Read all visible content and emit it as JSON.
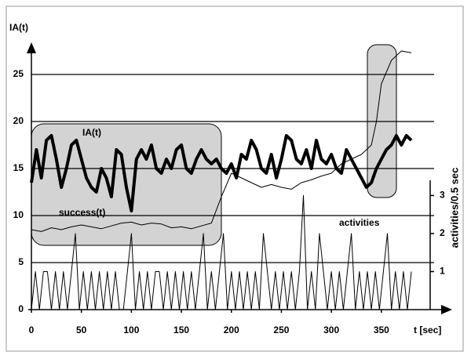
{
  "chart_data": {
    "type": "line",
    "y_label": "IA(t)",
    "x_label": "t [sec]",
    "y2_label": "activities/0.5 sec",
    "annotations": [
      "IA(t)",
      "success(t)",
      "activities"
    ],
    "xlim": [
      0,
      420
    ],
    "xticks": [
      0,
      50,
      100,
      150,
      200,
      250,
      300,
      350
    ],
    "ylim": [
      0,
      28
    ],
    "yticks": [
      0,
      5,
      10,
      15,
      20,
      25
    ],
    "y2lim": [
      0,
      3.4
    ],
    "y2ticks": [
      1,
      2,
      3
    ],
    "grid": true,
    "series": [
      {
        "name": "IA(t)",
        "color": "#000000",
        "x": [
          0,
          5,
          10,
          15,
          20,
          25,
          30,
          35,
          40,
          45,
          50,
          55,
          60,
          65,
          70,
          75,
          80,
          85,
          90,
          95,
          100,
          105,
          110,
          115,
          120,
          125,
          130,
          135,
          140,
          145,
          150,
          155,
          160,
          165,
          170,
          175,
          180,
          185,
          190,
          195,
          200,
          205,
          210,
          215,
          220,
          225,
          230,
          235,
          240,
          245,
          250,
          255,
          260,
          265,
          270,
          275,
          280,
          285,
          290,
          295,
          300,
          305,
          310,
          315,
          320,
          325,
          330,
          335,
          340,
          345,
          350,
          355,
          360,
          365,
          370,
          375,
          380
        ],
        "values": [
          13.5,
          17,
          14,
          18,
          18.5,
          16,
          13,
          15,
          17.5,
          18,
          16,
          14,
          13,
          12.5,
          15,
          14,
          12,
          17,
          16.5,
          13,
          10.5,
          16,
          17,
          16,
          17.5,
          15,
          14.5,
          16,
          15,
          17,
          17.5,
          15,
          14.5,
          16,
          17,
          16,
          15.5,
          16,
          15,
          14.5,
          15.5,
          14,
          16.5,
          16,
          18,
          17,
          15,
          14.5,
          16.5,
          14,
          16,
          18.5,
          18,
          16,
          15.5,
          17,
          15,
          18,
          16,
          15.5,
          16.5,
          15,
          14.5,
          17,
          16,
          15,
          14,
          13,
          13.5,
          15,
          16,
          17,
          17.5,
          18.5,
          17.5,
          18.5,
          18
        ]
      },
      {
        "name": "success(t)",
        "color": "#000000",
        "x": [
          0,
          10,
          20,
          30,
          40,
          50,
          60,
          70,
          80,
          90,
          100,
          110,
          120,
          130,
          140,
          150,
          160,
          170,
          180,
          190,
          200,
          210,
          220,
          230,
          240,
          250,
          260,
          270,
          280,
          290,
          300,
          310,
          320,
          330,
          340,
          345,
          350,
          360,
          370,
          380
        ],
        "values": [
          8.5,
          8.3,
          8.7,
          8.5,
          8.8,
          9,
          8.8,
          8.6,
          8.9,
          9.2,
          9.3,
          9,
          9.2,
          9.1,
          8.7,
          8.8,
          8.6,
          8.9,
          9.2,
          12,
          14.5,
          14,
          13.5,
          13,
          13.3,
          13,
          12.8,
          13.5,
          13.8,
          14.2,
          14.5,
          15.5,
          16,
          16.5,
          17.5,
          20,
          24,
          26.5,
          27.5,
          27.3
        ]
      },
      {
        "name": "activities",
        "color": "#000000",
        "axis": "y2",
        "x": [
          0,
          4,
          8,
          12,
          16,
          20,
          24,
          28,
          32,
          36,
          40,
          44,
          48,
          52,
          56,
          60,
          64,
          68,
          72,
          76,
          80,
          84,
          88,
          92,
          96,
          100,
          104,
          108,
          112,
          116,
          120,
          124,
          128,
          132,
          136,
          140,
          144,
          148,
          152,
          156,
          160,
          164,
          168,
          172,
          176,
          180,
          184,
          188,
          192,
          196,
          200,
          204,
          208,
          212,
          216,
          220,
          224,
          228,
          232,
          236,
          240,
          244,
          248,
          252,
          256,
          260,
          264,
          268,
          272,
          276,
          280,
          284,
          288,
          292,
          296,
          300,
          304,
          308,
          312,
          316,
          320,
          324,
          328,
          332,
          336,
          340,
          344,
          348,
          352,
          356,
          360,
          364,
          368,
          372,
          376,
          380
        ],
        "values": [
          0,
          1,
          0,
          1,
          1,
          0,
          1,
          0,
          1,
          0,
          1,
          2,
          0,
          1,
          0,
          1,
          0,
          1,
          0,
          1,
          0,
          1,
          0,
          0,
          1,
          2,
          0,
          1,
          0,
          1,
          0,
          1,
          1,
          0,
          1,
          0,
          1,
          0,
          1,
          0,
          1,
          0,
          1,
          2,
          0,
          1,
          0,
          1,
          2,
          0,
          1,
          0,
          1,
          0,
          1,
          0,
          1,
          0,
          2,
          1,
          0,
          1,
          0,
          1,
          0,
          1,
          0,
          1,
          3,
          0,
          1,
          0,
          2,
          1,
          0,
          1,
          0,
          1,
          0,
          1,
          2,
          0,
          1,
          0,
          1,
          0,
          1,
          0,
          1,
          2,
          0,
          1,
          0,
          1,
          0,
          1
        ]
      }
    ]
  }
}
